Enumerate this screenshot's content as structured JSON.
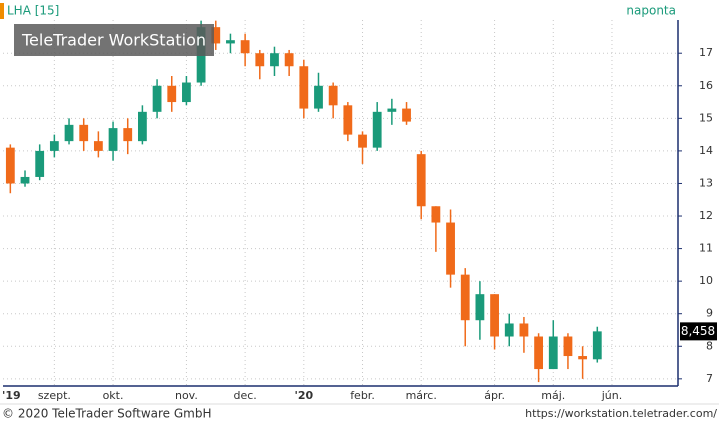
{
  "chart_data": {
    "type": "candlestick",
    "title": "LHA [15]",
    "interval": "naponta",
    "watermark": "TeleTrader WorkStation",
    "footer_left": "© 2020 TeleTrader Software GmbH",
    "footer_right": "https://workstation.teletrader.com/",
    "categories": [
      "'19",
      null,
      null,
      "szept.",
      null,
      null,
      null,
      "okt.",
      null,
      null,
      null,
      null,
      "nov.",
      null,
      null,
      null,
      "dec.",
      null,
      null,
      null,
      "'20",
      null,
      null,
      null,
      "febr.",
      null,
      null,
      null,
      "márc.",
      null,
      null,
      null,
      null,
      "ápr.",
      null,
      null,
      null,
      "máj.",
      null,
      null,
      null,
      "jún.",
      null,
      null,
      null,
      null
    ],
    "open": [
      14.1,
      13.0,
      13.2,
      14.0,
      14.3,
      14.8,
      14.3,
      14.0,
      14.7,
      14.3,
      15.2,
      16.0,
      15.5,
      16.1,
      17.8,
      17.3,
      17.4,
      17.0,
      16.6,
      17.0,
      16.6,
      15.3,
      16.0,
      15.4,
      14.5,
      14.1,
      15.2,
      15.3,
      13.9,
      12.3,
      11.8,
      10.2,
      8.8,
      9.6,
      8.3,
      8.7,
      8.3,
      7.3,
      8.3,
      7.7,
      7.6,
      null,
      null,
      null,
      null,
      null
    ],
    "high": [
      14.2,
      13.4,
      14.2,
      14.5,
      15.0,
      15.0,
      14.6,
      14.9,
      15.0,
      15.4,
      16.2,
      16.3,
      16.3,
      18.0,
      18.0,
      17.6,
      17.6,
      17.1,
      17.2,
      17.1,
      16.8,
      16.4,
      16.1,
      15.5,
      14.6,
      15.5,
      15.6,
      15.5,
      14.0,
      12.3,
      12.2,
      10.4,
      10.0,
      9.6,
      9.0,
      8.9,
      8.4,
      8.8,
      8.4,
      8.0,
      8.6,
      null,
      null,
      null,
      null,
      null
    ],
    "low": [
      12.7,
      12.9,
      13.1,
      13.8,
      14.2,
      14.0,
      13.8,
      13.7,
      13.9,
      14.2,
      15.0,
      15.2,
      15.4,
      16.0,
      17.1,
      17.0,
      16.6,
      16.2,
      16.3,
      16.3,
      15.0,
      15.2,
      15.0,
      14.3,
      13.6,
      14.0,
      14.8,
      14.8,
      11.9,
      10.9,
      9.8,
      8.0,
      8.2,
      7.9,
      8.0,
      7.8,
      6.9,
      7.3,
      7.3,
      7.0,
      7.5,
      null,
      null,
      null,
      null,
      null
    ],
    "close": [
      13.0,
      13.2,
      14.0,
      14.3,
      14.8,
      14.3,
      14.0,
      14.7,
      14.3,
      15.2,
      16.0,
      15.5,
      16.1,
      17.8,
      17.3,
      17.4,
      17.0,
      16.6,
      17.0,
      16.6,
      15.3,
      16.0,
      15.4,
      14.5,
      14.1,
      15.2,
      15.3,
      14.9,
      12.3,
      11.8,
      10.2,
      8.8,
      9.6,
      8.3,
      8.7,
      8.3,
      7.3,
      8.3,
      7.7,
      7.6,
      8.458,
      null,
      null,
      null,
      null,
      null
    ],
    "up_color": "#1a9a7a",
    "down_color": "#f06a1a",
    "last_value": {
      "value": 8.458,
      "label": "8,458"
    },
    "ylim": [
      6.78,
      18.02
    ],
    "yticks": [
      7,
      8,
      9,
      10,
      11,
      12,
      13,
      14,
      15,
      16,
      17
    ],
    "grid": true
  }
}
